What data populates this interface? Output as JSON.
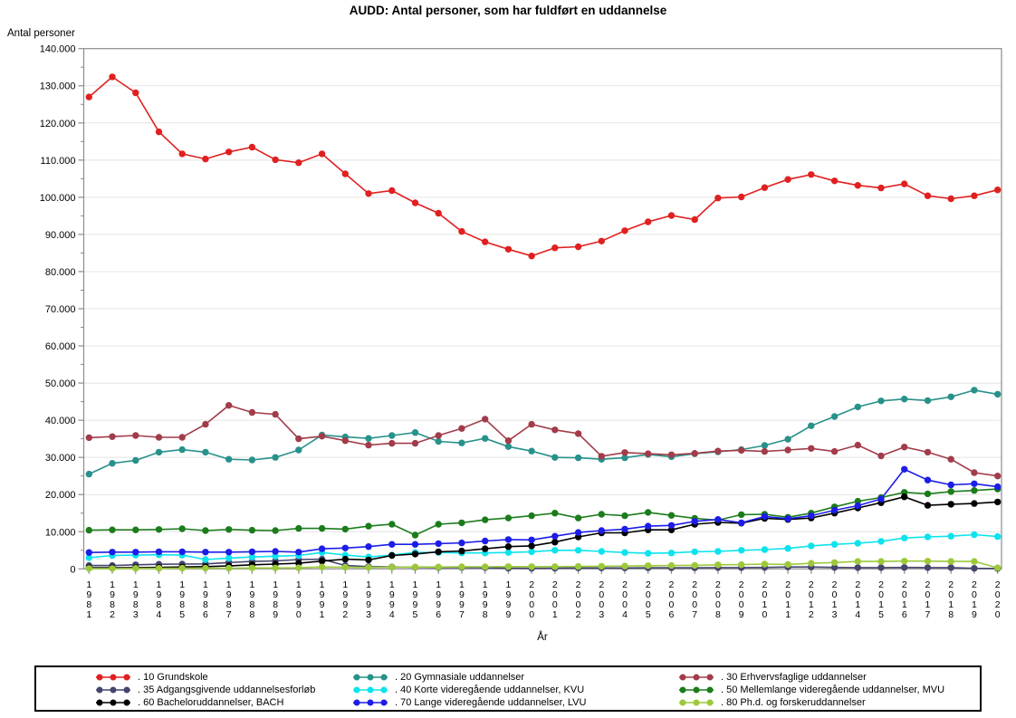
{
  "title": "AUDD: Antal personer, som har fuldført en uddannelse",
  "y_axis_label": "Antal personer",
  "x_axis_label": "År",
  "colors": {
    "frame": "#8c8c8c",
    "grid": "#e4e4e4",
    "tick": "#8c8c8c",
    "text": "#000000",
    "legend_border": "#000000",
    "background": "#ffffff"
  },
  "chart_data": {
    "type": "line",
    "title": "AUDD: Antal personer, som har fuldført en uddannelse",
    "xlabel": "År",
    "ylabel": "Antal personer",
    "ylim": [
      0,
      140000
    ],
    "y_tick_step": 10000,
    "y_minor_tick_step": 5000,
    "grid": "horizontal-major",
    "legend_position": "bottom-box",
    "x": [
      1981,
      1982,
      1983,
      1984,
      1985,
      1986,
      1987,
      1988,
      1989,
      1990,
      1991,
      1992,
      1993,
      1994,
      1995,
      1996,
      1997,
      1998,
      1999,
      2000,
      2001,
      2002,
      2003,
      2004,
      2005,
      2006,
      2007,
      2008,
      2009,
      2010,
      2011,
      2012,
      2013,
      2014,
      2015,
      2016,
      2017,
      2018,
      2019,
      2020
    ],
    "series": [
      {
        "id": "10-grundskole",
        "label": ". 10 Grundskole",
        "color": "#e02020",
        "values": [
          127000,
          132400,
          128100,
          117600,
          111700,
          110300,
          112200,
          113500,
          110100,
          109300,
          111700,
          106300,
          101000,
          101800,
          98500,
          95700,
          90800,
          88000,
          86000,
          84200,
          86400,
          86700,
          88200,
          91000,
          93400,
          95100,
          94000,
          99800,
          100100,
          102600,
          104800,
          106100,
          104400,
          103200,
          102500,
          103600,
          100400,
          99600,
          100400,
          102000
        ]
      },
      {
        "id": "20-gymnasiale",
        "label": ". 20 Gymnasiale uddannelser",
        "color": "#27918a",
        "values": [
          25500,
          28400,
          29200,
          31400,
          32100,
          31400,
          29500,
          29300,
          30000,
          32000,
          36000,
          35500,
          35100,
          35900,
          36700,
          34300,
          33900,
          35100,
          32900,
          31700,
          30000,
          29900,
          29500,
          29900,
          30800,
          30200,
          31000,
          31500,
          32100,
          33200,
          34900,
          38500,
          41000,
          43600,
          45200,
          45700,
          45300,
          46300,
          48100,
          47000
        ]
      },
      {
        "id": "30-erhvervsfaglige",
        "label": ". 30 Erhvervsfaglige uddannelser",
        "color": "#a23c4a",
        "values": [
          35300,
          35600,
          35900,
          35400,
          35400,
          38900,
          44000,
          42100,
          41600,
          35000,
          35700,
          34500,
          33300,
          33800,
          33800,
          35900,
          37800,
          40300,
          34500,
          38900,
          37400,
          36400,
          30300,
          31300,
          31000,
          30700,
          31100,
          31700,
          31900,
          31600,
          32000,
          32400,
          31600,
          33300,
          30400,
          32800,
          31400,
          29500,
          25900,
          25000
        ]
      },
      {
        "id": "35-adgangsgivende",
        "label": ". 35 Adgangsgivende uddannelsesforløb",
        "color": "#45456e",
        "values": [
          900,
          900,
          1100,
          1250,
          1300,
          1350,
          1700,
          2000,
          2150,
          2500,
          2600,
          900,
          600,
          500,
          450,
          400,
          400,
          350,
          200,
          150,
          200,
          250,
          250,
          250,
          300,
          300,
          300,
          350,
          350,
          400,
          500,
          500,
          400,
          350,
          350,
          400,
          350,
          350,
          150,
          100
        ]
      },
      {
        "id": "40-kvu",
        "label": ". 40 Korte videregående uddannelser, KVU",
        "color": "#0ce3ee",
        "values": [
          3000,
          3600,
          3700,
          3800,
          3700,
          2500,
          2900,
          3200,
          3400,
          3600,
          4400,
          3700,
          3200,
          3700,
          4400,
          4400,
          4300,
          4300,
          4400,
          4600,
          5000,
          5000,
          4700,
          4400,
          4200,
          4300,
          4600,
          4700,
          5000,
          5200,
          5500,
          6200,
          6600,
          6900,
          7400,
          8300,
          8600,
          8800,
          9200,
          8700
        ]
      },
      {
        "id": "50-mvu",
        "label": ". 50 Mellemlange videregående uddannelser, MVU",
        "color": "#1c7c1c",
        "values": [
          10400,
          10500,
          10500,
          10600,
          10800,
          10300,
          10600,
          10400,
          10300,
          10900,
          10900,
          10700,
          11500,
          12000,
          9100,
          12000,
          12400,
          13200,
          13700,
          14300,
          15000,
          13700,
          14700,
          14300,
          15200,
          14400,
          13600,
          13100,
          14600,
          14700,
          13900,
          15000,
          16700,
          18200,
          19200,
          20600,
          20200,
          20800,
          21100,
          21500
        ]
      },
      {
        "id": "60-bach",
        "label": ". 60 Bacheloruddannelser, BACH",
        "color": "#000000",
        "values": [
          300,
          300,
          350,
          400,
          500,
          600,
          800,
          1100,
          1300,
          1500,
          2100,
          2600,
          2400,
          3600,
          4000,
          4600,
          4800,
          5400,
          6000,
          6200,
          7200,
          8600,
          9700,
          9700,
          10500,
          10500,
          12000,
          12500,
          12300,
          13600,
          13300,
          13700,
          15000,
          16400,
          17800,
          19400,
          17100,
          17400,
          17600,
          18000
        ]
      },
      {
        "id": "70-lvu",
        "label": ". 70 Lange videregående uddannelser, LVU",
        "color": "#1d1de8",
        "values": [
          4400,
          4500,
          4500,
          4600,
          4600,
          4500,
          4500,
          4600,
          4700,
          4500,
          5400,
          5600,
          6000,
          6600,
          6600,
          6800,
          7000,
          7500,
          7900,
          7800,
          8800,
          9800,
          10300,
          10700,
          11500,
          11700,
          12800,
          13300,
          12400,
          14100,
          13500,
          14300,
          15800,
          17000,
          18800,
          26800,
          23900,
          22600,
          22900,
          22100
        ]
      },
      {
        "id": "80-phd",
        "label": ". 80 Ph.d. og forskeruddannelser",
        "color": "#9cc93a",
        "values": [
          100,
          100,
          150,
          150,
          200,
          200,
          200,
          250,
          250,
          300,
          500,
          450,
          400,
          450,
          500,
          500,
          550,
          550,
          600,
          600,
          600,
          650,
          700,
          750,
          850,
          900,
          950,
          1100,
          1150,
          1300,
          1200,
          1500,
          1700,
          2000,
          2000,
          2100,
          2100,
          2000,
          2000,
          300
        ]
      }
    ]
  }
}
